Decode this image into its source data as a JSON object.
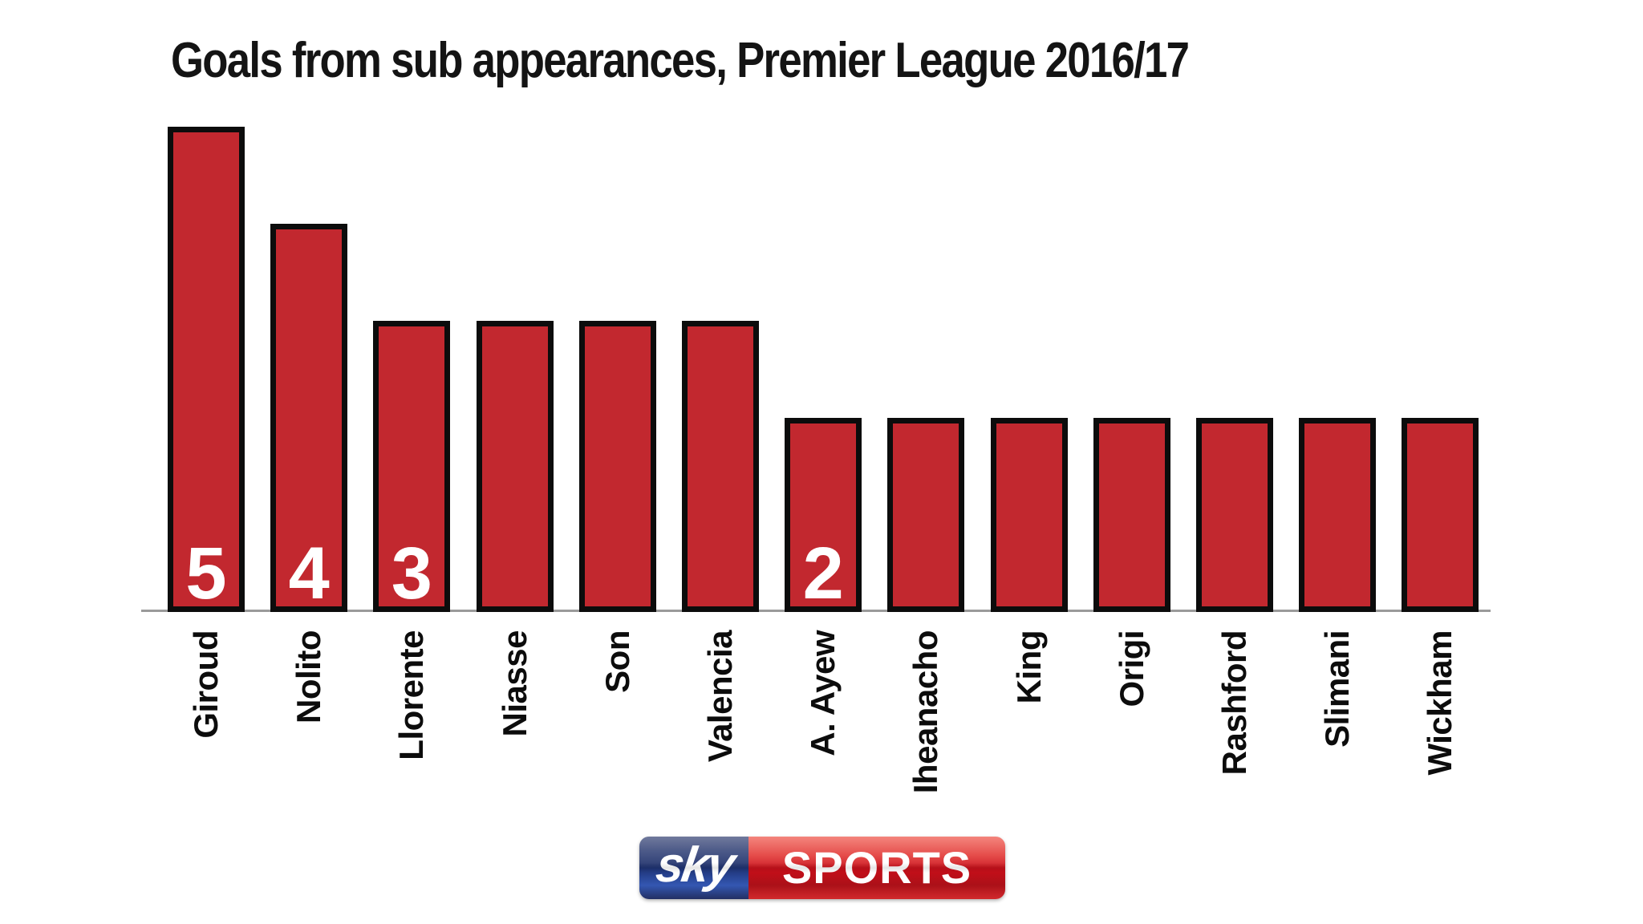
{
  "title": "Goals from sub appearances, Premier League 2016/17",
  "chart_data": {
    "type": "bar",
    "title": "Goals from sub appearances, Premier League 2016/17",
    "categories": [
      "Giroud",
      "Nolito",
      "Llorente",
      "Niasse",
      "Son",
      "Valencia",
      "A. Ayew",
      "Iheanacho",
      "King",
      "Origi",
      "Rashford",
      "Slimani",
      "Wickham"
    ],
    "values": [
      5,
      4,
      3,
      3,
      3,
      3,
      2,
      2,
      2,
      2,
      2,
      2,
      2
    ],
    "xlabel": "",
    "ylabel": "",
    "ylim": [
      0,
      5
    ],
    "grid": false,
    "legend": null,
    "x_tick_rotation_degrees": 90,
    "value_labels": {
      "indices": [
        0,
        1,
        2,
        6
      ],
      "values": [
        "5",
        "4",
        "3",
        "2"
      ],
      "color": "#ffffff"
    },
    "colors": {
      "bar_fill": "#c2282f",
      "bar_border": "#0c0c0c",
      "axis_line": "#9a9a9a",
      "text": "#141414"
    }
  },
  "logo": {
    "name": "Sky Sports",
    "sky_text": "sky",
    "sports_text": "SPORTS",
    "blue": "#1d2f6b",
    "red": "#c8101b"
  }
}
